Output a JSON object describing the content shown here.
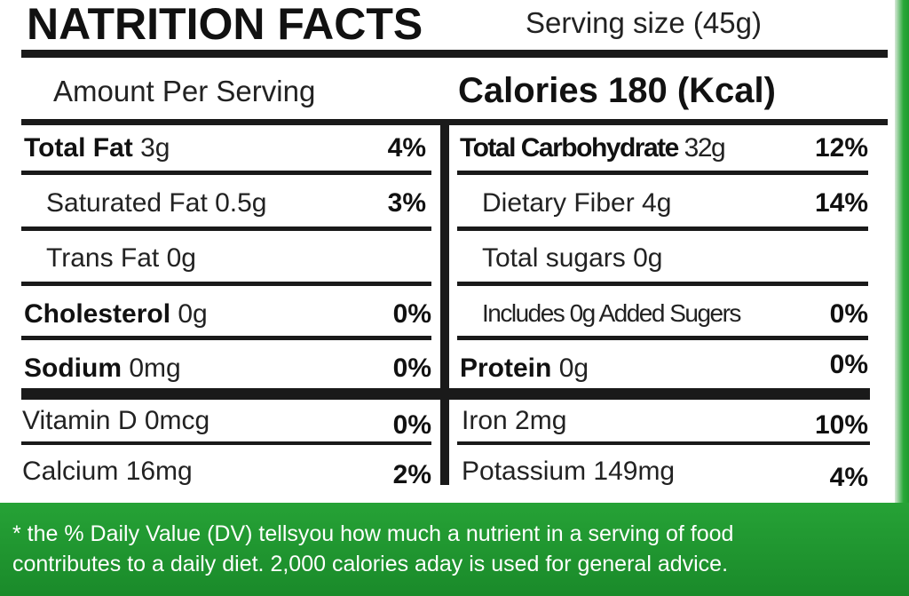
{
  "header": {
    "title": "NATRITION FACTS",
    "serving_size": "Serving size (45g)",
    "amount_per_serving": "Amount Per Serving",
    "calories": "Calories 180 (Kcal)"
  },
  "left": [
    {
      "name": "Total Fat",
      "amount": " 3g",
      "dv": "4%"
    },
    {
      "name": "",
      "amount": "Saturated Fat 0.5g",
      "dv": "3%"
    },
    {
      "name": "",
      "amount": "Trans Fat 0g",
      "dv": ""
    },
    {
      "name": "Cholesterol",
      "amount": " 0g",
      "dv": "0%"
    },
    {
      "name": "Sodium",
      "amount": " 0mg",
      "dv": "0%"
    }
  ],
  "right": [
    {
      "name": "Total Carbohydrate",
      "amount": " 32g",
      "dv": "12%"
    },
    {
      "name": "",
      "amount": "Dietary Fiber 4g",
      "dv": "14%"
    },
    {
      "name": "",
      "amount": "Total sugars 0g",
      "dv": ""
    },
    {
      "name": "",
      "amount": "Includes 0g Added Sugers",
      "dv": "0%"
    },
    {
      "name": "Protein",
      "amount": " 0g",
      "dv": "0%"
    }
  ],
  "minerals_left": [
    {
      "label": "Vitamin D 0mcg",
      "dv": "0%"
    },
    {
      "label": "Calcium 16mg",
      "dv": "2%"
    }
  ],
  "minerals_right": [
    {
      "label": "Iron 2mg",
      "dv": "10%"
    },
    {
      "label": "Potassium 149mg",
      "dv": "4%"
    }
  ],
  "footer": {
    "line1": "* the % Daily Value (DV) tellsyou how much a nutrient in a serving of food",
    "line2": "contributes to a daily diet. 2,000 calories aday is used for general advice."
  },
  "colors": {
    "background_green": "#1e9a2e",
    "label_white": "#ffffff",
    "rule_black": "#1a1a1a"
  }
}
